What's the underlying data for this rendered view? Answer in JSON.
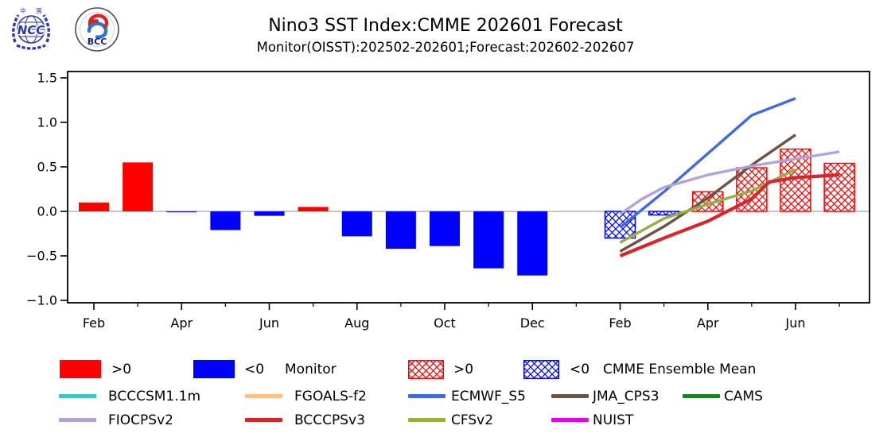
{
  "header": {
    "title": "Nino3 SST Index:CMME 202601 Forecast",
    "subtitle": "Monitor(OISST):202502-202601;Forecast:202602-202607"
  },
  "logos": {
    "ncc": "NCC",
    "bcc": "BCC",
    "cn1": "中",
    "cn2": "国"
  },
  "chart_data": {
    "type": "bar+line",
    "title": "Nino3 SST Index:CMME 202601 Forecast",
    "subtitle": "Monitor(OISST):202502-202601;Forecast:202602-202607",
    "ylim": [
      -1.0,
      1.5
    ],
    "grid": "off",
    "y_axis": {
      "ticks": [
        1.5,
        1.0,
        0.5,
        0.0,
        -0.5,
        -1.0
      ],
      "tick_labels": [
        "1.5",
        "1.0",
        "0.5",
        "0.0",
        "−0.5",
        "−1.0"
      ]
    },
    "x_axis": {
      "unit": "months_from_2025-02",
      "major_tick_months": [
        0,
        2,
        4,
        6,
        8,
        10,
        12,
        14,
        16
      ],
      "major_tick_labels": [
        "Feb",
        "Apr",
        "Jun",
        "Aug",
        "Oct",
        "Dec",
        "Feb",
        "Apr",
        "Jun"
      ],
      "minor_tick_months": [
        1,
        3,
        5,
        7,
        9,
        11,
        13,
        15,
        17
      ]
    },
    "monitor_bars": {
      "label": "Monitor",
      "start_month": 0,
      "months": [
        "Feb",
        "Mar",
        "Apr",
        "May",
        "Jun",
        "Jul",
        "Aug",
        "Sep",
        "Oct",
        "Nov",
        "Dec",
        "Jan"
      ],
      "values": [
        0.1,
        0.55,
        -0.01,
        -0.21,
        -0.05,
        0.05,
        -0.28,
        -0.42,
        -0.39,
        -0.64,
        -0.72,
        0.0
      ],
      "positive_color": "#ff0000",
      "negative_color": "#0000ff"
    },
    "forecast_bars": {
      "label": "CMME Ensemble Mean",
      "style": "crosshatch",
      "start_month": 12,
      "months": [
        "Feb",
        "Mar",
        "Apr",
        "May",
        "Jun",
        "Jul"
      ],
      "values": [
        -0.3,
        -0.04,
        0.22,
        0.49,
        0.7,
        0.54
      ],
      "positive_color": "#ff0000",
      "negative_color": "#0000ff"
    },
    "series": [
      {
        "name": "ECMWF_S5",
        "color": "#4169e1",
        "width": 3.4,
        "points": [
          [
            12,
            -0.18
          ],
          [
            13,
            0.22
          ],
          [
            14,
            0.65
          ],
          [
            15,
            1.08
          ],
          [
            16,
            1.27
          ]
        ]
      },
      {
        "name": "JMA_CPS3",
        "color": "#6b5346",
        "width": 3.4,
        "points": [
          [
            12,
            -0.45
          ],
          [
            13,
            -0.17
          ],
          [
            14,
            0.15
          ],
          [
            15,
            0.52
          ],
          [
            16,
            0.86
          ]
        ]
      },
      {
        "name": "FIOCPSv2",
        "color": "#b2a2d8",
        "width": 3.4,
        "points": [
          [
            12,
            -0.03
          ],
          [
            12.5,
            0.14
          ],
          [
            13,
            0.27
          ],
          [
            14,
            0.41
          ],
          [
            15,
            0.51
          ],
          [
            16,
            0.59
          ],
          [
            17,
            0.67
          ]
        ]
      },
      {
        "name": "CFSv2",
        "color": "#99ad45",
        "width": 3.4,
        "points": [
          [
            12,
            -0.35
          ],
          [
            13,
            -0.08
          ],
          [
            14,
            0.08
          ],
          [
            15,
            0.23
          ],
          [
            16,
            0.47
          ]
        ]
      },
      {
        "name": "BCCCPSv3",
        "color": "#d62728",
        "width": 4.2,
        "points": [
          [
            12,
            -0.5
          ],
          [
            13,
            -0.3
          ],
          [
            14,
            -0.11
          ],
          [
            15,
            0.14
          ],
          [
            15.4,
            0.33
          ],
          [
            16,
            0.38
          ],
          [
            17,
            0.41
          ]
        ]
      }
    ]
  },
  "legend": {
    "row1": [
      {
        "swatch": "solid",
        "color": "#ff0000",
        "label": ">0"
      },
      {
        "swatch": "solid",
        "color": "#0000ff",
        "label": "<0"
      },
      {
        "swatch": "none",
        "label": "Monitor"
      },
      {
        "swatch": "hatch",
        "color": "#ff0000",
        "label": ">0"
      },
      {
        "swatch": "hatch",
        "color": "#0000ff",
        "label": "<0"
      },
      {
        "swatch": "none",
        "label": "CMME Ensemble Mean"
      }
    ],
    "row2": [
      {
        "swatch": "line",
        "color": "#3ec6c2",
        "label": "BCCCSM1.1m"
      },
      {
        "swatch": "line",
        "color": "#ffbf86",
        "label": "FGOALS-f2"
      },
      {
        "swatch": "line",
        "color": "#4169e1",
        "label": "ECMWF_S5"
      },
      {
        "swatch": "line",
        "color": "#6b5346",
        "label": "JMA_CPS3"
      },
      {
        "swatch": "line",
        "color": "#1e801e",
        "label": "CAMS"
      }
    ],
    "row3": [
      {
        "swatch": "line",
        "color": "#b2a2d8",
        "label": "FIOCPSv2"
      },
      {
        "swatch": "line",
        "color": "#d62728",
        "label": "BCCCPSv3"
      },
      {
        "swatch": "line",
        "color": "#99ad45",
        "label": "CFSv2"
      },
      {
        "swatch": "line",
        "color": "#e800e8",
        "label": "NUIST"
      }
    ]
  }
}
